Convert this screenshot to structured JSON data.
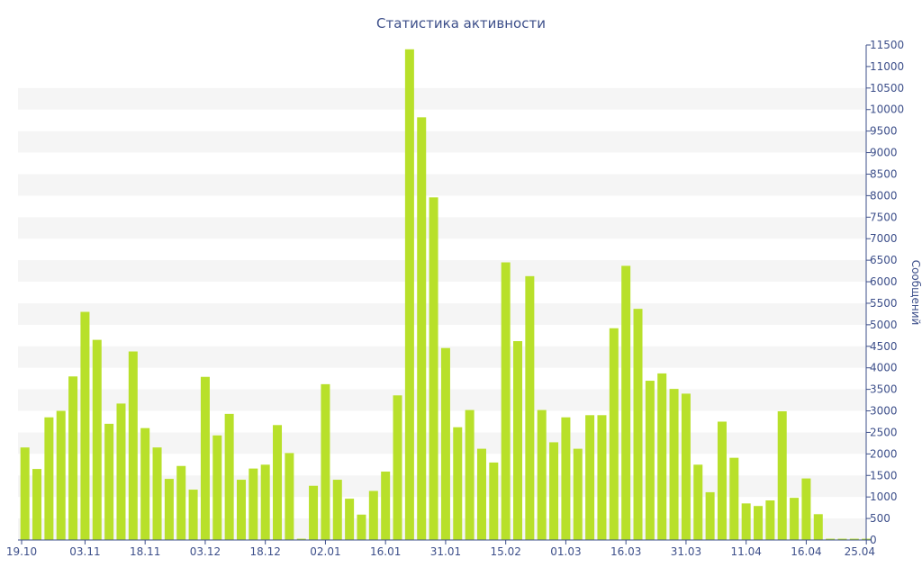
{
  "colors": {
    "bar": "#b8e02a",
    "text": "#3d4f8a",
    "band": "#f5f5f5",
    "background": "#ffffff"
  },
  "chart_data": {
    "type": "bar",
    "title": "Статистика активности",
    "xlabel": "",
    "ylabel": "Сообщений",
    "y_axis_position": "right",
    "grid": "alternating horizontal bands",
    "ylim": [
      0,
      11500
    ],
    "y_tick_step": 500,
    "x_tick_labels": [
      "19.10",
      "03.11",
      "18.11",
      "03.12",
      "18.12",
      "02.01",
      "16.01",
      "31.01",
      "15.02",
      "01.03",
      "16.03",
      "31.03",
      "11.04",
      "16.04",
      "25.04"
    ],
    "x_tick_bar_index": [
      0,
      5,
      10,
      15,
      20,
      25,
      30,
      35,
      40,
      45,
      50,
      55,
      60,
      65,
      70
    ],
    "values": [
      2150,
      1650,
      2850,
      3000,
      3800,
      5300,
      4650,
      2700,
      3170,
      4380,
      2600,
      2150,
      1420,
      1720,
      1170,
      3790,
      2430,
      2930,
      1400,
      1660,
      1750,
      2670,
      2020,
      30,
      1260,
      3620,
      1400,
      960,
      590,
      1140,
      1590,
      3360,
      11400,
      9820,
      7960,
      4460,
      2620,
      3020,
      2120,
      1800,
      6450,
      4620,
      6130,
      3020,
      2270,
      2850,
      2120,
      2900,
      2900,
      4920,
      6370,
      5370,
      3700,
      3870,
      3510,
      3400,
      1750,
      1110,
      2750,
      1910,
      850,
      790,
      920,
      2990,
      980,
      1430,
      600,
      30,
      30,
      30,
      30
    ]
  }
}
